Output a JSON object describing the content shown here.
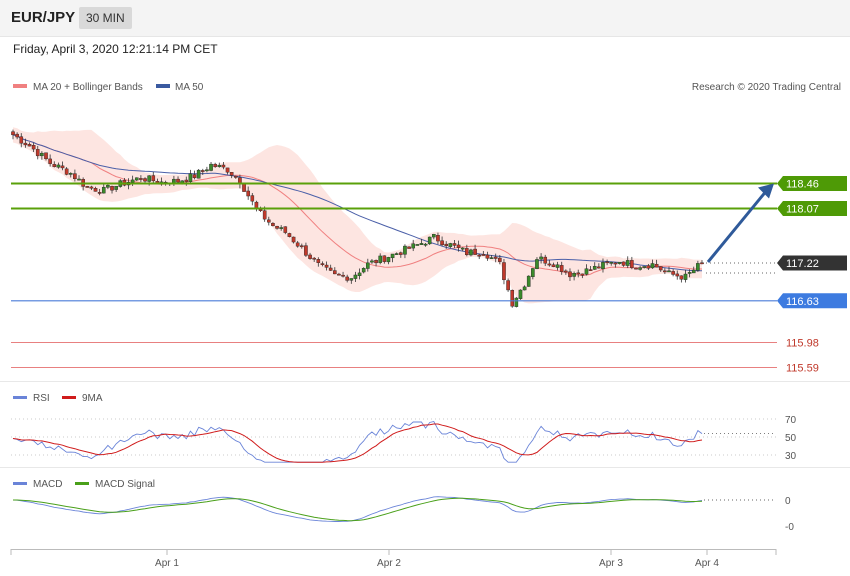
{
  "header": {
    "pair": "EUR/JPY",
    "timeframe": "30 MIN"
  },
  "datetime": "Friday, April 3, 2020 12:21:14 PM CET",
  "credit": "Research © 2020 Trading Central",
  "colors": {
    "ma20": "#f08080",
    "ma50": "#4a5fa8",
    "band_fill": "#fde0dc",
    "up": "#3a8a2a",
    "down": "#c0392b",
    "support": "#4a7bd8",
    "resistance": "#5aa00a",
    "target_arrow": "#2f5a9a",
    "rsi": "#6a84d8",
    "rsi_ma": "#d01c1c",
    "macd": "#6a84d8",
    "macd_signal": "#4aa01a"
  },
  "legend": {
    "ma20": "MA 20 + Bollinger Bands",
    "ma50": "MA 50"
  },
  "chart_data": {
    "type": "candlestick",
    "ylim": [
      115.4,
      119.3
    ],
    "x_ticks": [
      "Apr 1",
      "Apr 2",
      "Apr 3",
      "Apr 4"
    ],
    "current_price": "117.22",
    "levels": [
      {
        "value": "118.46",
        "kind": "resistance"
      },
      {
        "value": "118.07",
        "kind": "resistance"
      },
      {
        "value": "117.22",
        "kind": "current"
      },
      {
        "value": "116.63",
        "kind": "support"
      },
      {
        "value": "115.98",
        "kind": "support-minor"
      },
      {
        "value": "115.59",
        "kind": "support-minor"
      }
    ],
    "close_path": [
      [
        0,
        119.22
      ],
      [
        4,
        119.05
      ],
      [
        9,
        118.78
      ],
      [
        14,
        118.62
      ],
      [
        18,
        118.4
      ],
      [
        22,
        118.35
      ],
      [
        26,
        118.45
      ],
      [
        31,
        118.55
      ],
      [
        36,
        118.48
      ],
      [
        40,
        118.5
      ],
      [
        44,
        118.58
      ],
      [
        48,
        118.75
      ],
      [
        52,
        118.68
      ],
      [
        55,
        118.5
      ],
      [
        59,
        118.05
      ],
      [
        63,
        117.8
      ],
      [
        66,
        117.7
      ],
      [
        70,
        117.45
      ],
      [
        74,
        117.18
      ],
      [
        78,
        117.02
      ],
      [
        82,
        117.0
      ],
      [
        86,
        117.2
      ],
      [
        90,
        117.3
      ],
      [
        94,
        117.4
      ],
      [
        98,
        117.5
      ],
      [
        102,
        117.62
      ],
      [
        106,
        117.5
      ],
      [
        110,
        117.38
      ],
      [
        114,
        117.4
      ],
      [
        118,
        117.2
      ],
      [
        121,
        116.6
      ],
      [
        124,
        116.9
      ],
      [
        127,
        117.3
      ],
      [
        131,
        117.22
      ],
      [
        135,
        117.05
      ],
      [
        139,
        117.1
      ],
      [
        143,
        117.18
      ],
      [
        147,
        117.25
      ],
      [
        151,
        117.18
      ],
      [
        155,
        117.2
      ],
      [
        159,
        117.05
      ],
      [
        163,
        117.0
      ],
      [
        167,
        117.22
      ]
    ],
    "indicators": {
      "rsi": {
        "label": "RSI",
        "ma_label": "9MA",
        "ticks": [
          "70",
          "50",
          "30"
        ]
      },
      "macd": {
        "label": "MACD",
        "signal_label": "MACD Signal",
        "ticks": [
          "0",
          "-0"
        ]
      }
    }
  }
}
